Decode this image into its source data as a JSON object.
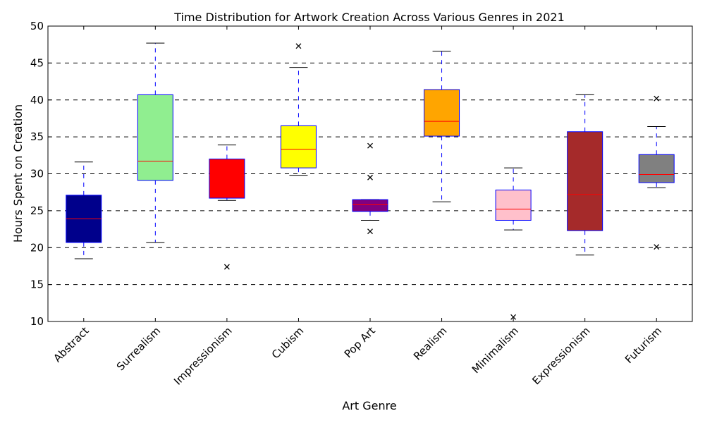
{
  "chart_data": {
    "type": "box",
    "title": "Time Distribution for Artwork Creation Across Various Genres in 2021",
    "xlabel": "Art Genre",
    "ylabel": "Hours Spent on Creation",
    "ylim": [
      10,
      50
    ],
    "yticks": [
      10,
      15,
      20,
      25,
      30,
      35,
      40,
      45,
      50
    ],
    "grid": "horizontal-dashed",
    "categories": [
      "Abstract",
      "Surrealism",
      "Impressionism",
      "Cubism",
      "Pop Art",
      "Realism",
      "Minimalism",
      "Expressionism",
      "Futurism"
    ],
    "boxes": [
      {
        "whisker_low": 18.5,
        "q1": 20.7,
        "median": 23.9,
        "q3": 27.1,
        "whisker_high": 31.6,
        "outliers": [],
        "color": "#00008b"
      },
      {
        "whisker_low": 20.7,
        "q1": 29.1,
        "median": 31.7,
        "q3": 40.7,
        "whisker_high": 47.7,
        "outliers": [],
        "color": "#90ee90"
      },
      {
        "whisker_low": 26.4,
        "q1": 26.7,
        "median": 29.8,
        "q3": 32.0,
        "whisker_high": 33.9,
        "outliers": [
          17.4
        ],
        "color": "#ff0000"
      },
      {
        "whisker_low": 29.8,
        "q1": 30.8,
        "median": 33.3,
        "q3": 36.5,
        "whisker_high": 44.4,
        "outliers": [
          47.3
        ],
        "color": "#ffff00"
      },
      {
        "whisker_low": 23.7,
        "q1": 24.9,
        "median": 25.8,
        "q3": 26.5,
        "whisker_high": 26.5,
        "outliers": [
          33.8,
          29.5,
          22.2
        ],
        "color": "#800080"
      },
      {
        "whisker_low": 26.2,
        "q1": 35.1,
        "median": 37.1,
        "q3": 41.4,
        "whisker_high": 46.6,
        "outliers": [],
        "color": "#ffa500"
      },
      {
        "whisker_low": 22.4,
        "q1": 23.7,
        "median": 25.2,
        "q3": 27.8,
        "whisker_high": 30.8,
        "outliers": [
          10.6
        ],
        "color": "#ffc0cb"
      },
      {
        "whisker_low": 19.0,
        "q1": 22.3,
        "median": 27.2,
        "q3": 35.7,
        "whisker_high": 40.7,
        "outliers": [],
        "color": "#a52a2a"
      },
      {
        "whisker_low": 28.1,
        "q1": 28.8,
        "median": 29.9,
        "q3": 32.6,
        "whisker_high": 36.4,
        "outliers": [
          40.2,
          20.1
        ],
        "color": "#808080"
      }
    ],
    "box_edge_color": "#0000ff",
    "median_color": "#ff0000",
    "whisker_color": "#0000ff",
    "cap_color": "#000000",
    "outlier_marker": "x"
  }
}
